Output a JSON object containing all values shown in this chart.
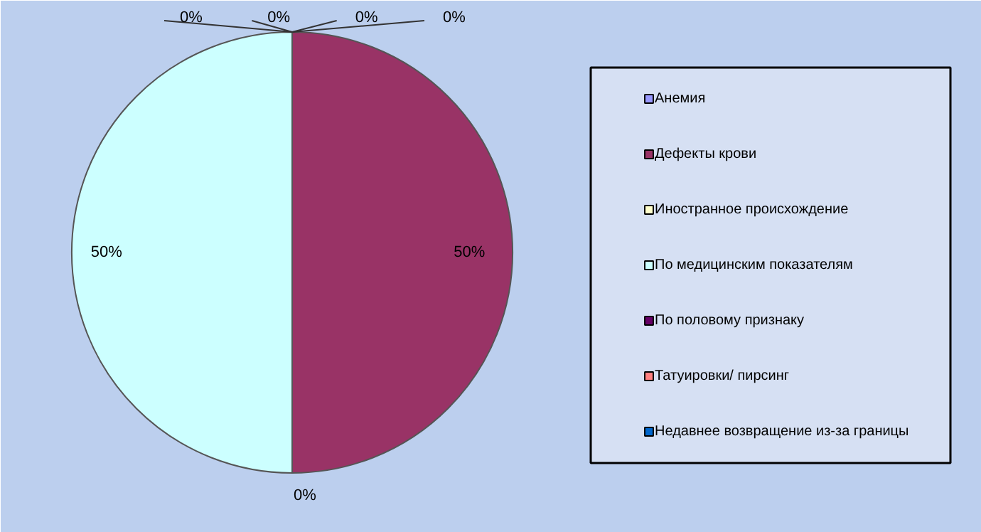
{
  "chart_data": {
    "type": "pie",
    "categories": [
      "Анемия",
      "Дефекты крови",
      "Иностранное происхождение",
      "По медицинским показателям",
      "По половому признаку",
      "Татуировки/ пирсинг",
      "Недавнее возвращение из-за границы"
    ],
    "values": [
      0,
      50,
      0,
      50,
      0,
      0,
      0
    ],
    "value_labels": [
      "0%",
      "50%",
      "0%",
      "50%",
      "0%",
      "0%",
      "0%"
    ],
    "colors": [
      "#9999ff",
      "#993366",
      "#ffffcc",
      "#ccffff",
      "#660066",
      "#ff8080",
      "#0066cc"
    ],
    "legend": "right"
  }
}
